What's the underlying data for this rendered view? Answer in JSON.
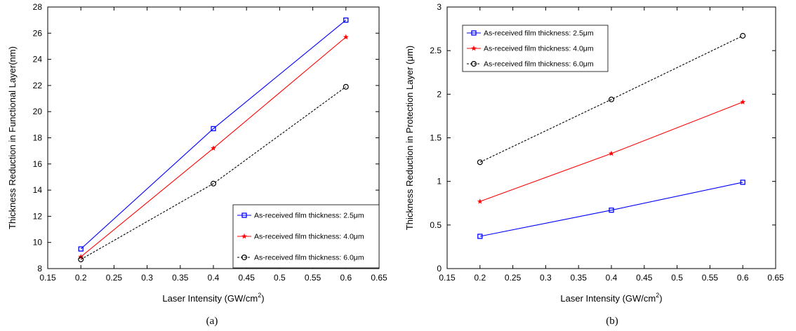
{
  "chart_data": [
    {
      "type": "line",
      "panel_label": "(a)",
      "xlabel": "Laser Intensity (GW/cm",
      "xlabel_sup": "2",
      "xlabel_suffix": ")",
      "ylabel": "Thickness Reduction in Functional Layer(nm)",
      "xlim": [
        0.15,
        0.65
      ],
      "ylim": [
        8,
        28
      ],
      "xticks": [
        "0.15",
        "0.2",
        "0.25",
        "0.3",
        "0.35",
        "0.4",
        "0.45",
        "0.5",
        "0.55",
        "0.6",
        "0.65"
      ],
      "yticks": [
        "8",
        "10",
        "12",
        "14",
        "16",
        "18",
        "20",
        "22",
        "24",
        "26",
        "28"
      ],
      "legend_position": "lower-right",
      "x": [
        0.2,
        0.4,
        0.6
      ],
      "series": [
        {
          "name": "As-received film thickness: 2.5μm",
          "values": [
            9.5,
            18.7,
            27.0
          ],
          "color": "#0000ff",
          "marker": "square",
          "dash": "solid"
        },
        {
          "name": "As-received film thickness: 4.0μm",
          "values": [
            8.9,
            17.2,
            25.7
          ],
          "color": "#ff0000",
          "marker": "star",
          "dash": "solid"
        },
        {
          "name": "As-received film thickness: 6.0μm",
          "values": [
            8.7,
            14.5,
            21.9
          ],
          "color": "#000000",
          "marker": "circle",
          "dash": "dashed"
        }
      ]
    },
    {
      "type": "line",
      "panel_label": "(b)",
      "xlabel": "Laser Intensity (GW/cm",
      "xlabel_sup": "2",
      "xlabel_suffix": ")",
      "ylabel": "Thickness Reduction in Protection Layer (μm)",
      "xlim": [
        0.15,
        0.65
      ],
      "ylim": [
        0,
        3
      ],
      "xticks": [
        "0.15",
        "0.2",
        "0.25",
        "0.3",
        "0.35",
        "0.4",
        "0.45",
        "0.5",
        "0.55",
        "0.6",
        "0.65"
      ],
      "yticks": [
        "0",
        "0.5",
        "1",
        "1.5",
        "2",
        "2.5",
        "3"
      ],
      "legend_position": "upper-left",
      "x": [
        0.2,
        0.4,
        0.6
      ],
      "series": [
        {
          "name": "As-received film thickness: 2.5μm",
          "values": [
            0.37,
            0.67,
            0.99
          ],
          "color": "#0000ff",
          "marker": "square",
          "dash": "solid"
        },
        {
          "name": "As-received film thickness: 4.0μm",
          "values": [
            0.77,
            1.32,
            1.91
          ],
          "color": "#ff0000",
          "marker": "star",
          "dash": "solid"
        },
        {
          "name": "As-received film thickness: 6.0μm",
          "values": [
            1.22,
            1.94,
            2.67
          ],
          "color": "#000000",
          "marker": "circle",
          "dash": "dashed"
        }
      ]
    }
  ]
}
